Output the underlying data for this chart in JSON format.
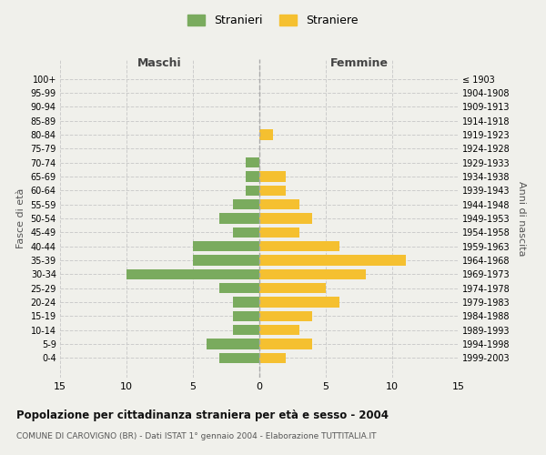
{
  "age_groups": [
    "0-4",
    "5-9",
    "10-14",
    "15-19",
    "20-24",
    "25-29",
    "30-34",
    "35-39",
    "40-44",
    "45-49",
    "50-54",
    "55-59",
    "60-64",
    "65-69",
    "70-74",
    "75-79",
    "80-84",
    "85-89",
    "90-94",
    "95-99",
    "100+"
  ],
  "birth_years": [
    "1999-2003",
    "1994-1998",
    "1989-1993",
    "1984-1988",
    "1979-1983",
    "1974-1978",
    "1969-1973",
    "1964-1968",
    "1959-1963",
    "1954-1958",
    "1949-1953",
    "1944-1948",
    "1939-1943",
    "1934-1938",
    "1929-1933",
    "1924-1928",
    "1919-1923",
    "1914-1918",
    "1909-1913",
    "1904-1908",
    "≤ 1903"
  ],
  "maschi": [
    3,
    4,
    2,
    2,
    2,
    3,
    10,
    5,
    5,
    2,
    3,
    2,
    1,
    1,
    1,
    0,
    0,
    0,
    0,
    0,
    0
  ],
  "femmine": [
    2,
    4,
    3,
    4,
    6,
    5,
    8,
    11,
    6,
    3,
    4,
    3,
    2,
    2,
    0,
    0,
    1,
    0,
    0,
    0,
    0
  ],
  "maschi_color": "#7aab5e",
  "femmine_color": "#f5c030",
  "title": "Popolazione per cittadinanza straniera per età e sesso - 2004",
  "subtitle": "COMUNE DI CAROVIGNO (BR) - Dati ISTAT 1° gennaio 2004 - Elaborazione TUTTITALIA.IT",
  "xlabel_left": "Maschi",
  "xlabel_right": "Femmine",
  "ylabel_left": "Fasce di età",
  "ylabel_right": "Anni di nascita",
  "legend_maschi": "Stranieri",
  "legend_femmine": "Straniere",
  "xlim": 15,
  "background_color": "#f0f0eb",
  "grid_color": "#cccccc"
}
